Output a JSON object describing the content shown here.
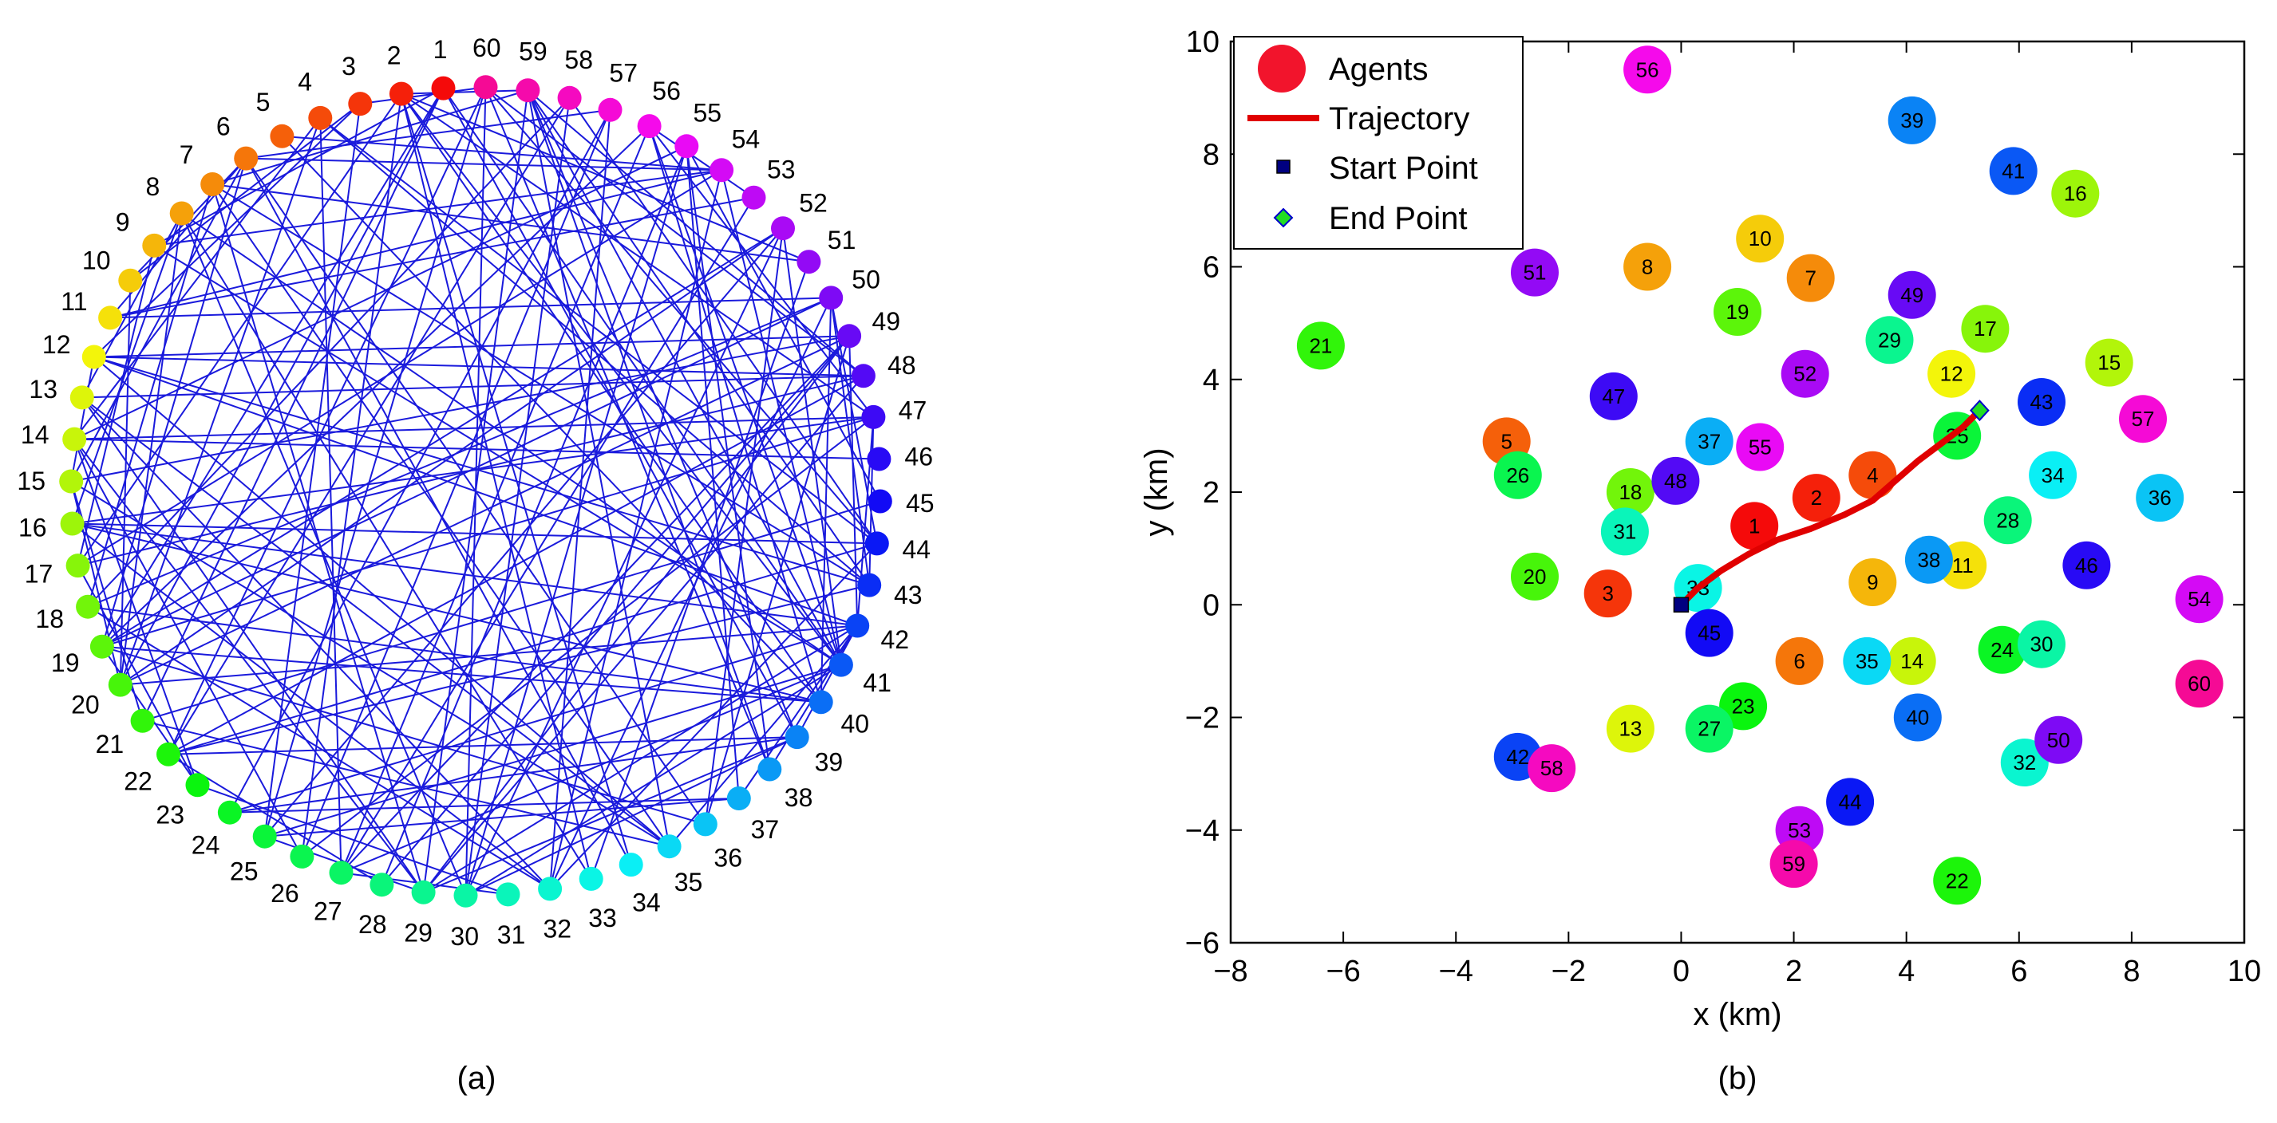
{
  "captions": {
    "left": "(a)",
    "right": "(b)"
  },
  "chart_data": [
    {
      "type": "network",
      "panel": "(a)",
      "title": "",
      "node_count": 60,
      "node_labels": [
        "1",
        "2",
        "3",
        "4",
        "5",
        "6",
        "7",
        "8",
        "9",
        "10",
        "11",
        "12",
        "13",
        "14",
        "15",
        "16",
        "17",
        "18",
        "19",
        "20",
        "21",
        "22",
        "23",
        "24",
        "25",
        "26",
        "27",
        "28",
        "29",
        "30",
        "31",
        "32",
        "33",
        "34",
        "35",
        "36",
        "37",
        "38",
        "39",
        "40",
        "41",
        "42",
        "43",
        "44",
        "45",
        "46",
        "47",
        "48",
        "49",
        "50",
        "51",
        "52",
        "53",
        "54",
        "55",
        "56",
        "57",
        "58",
        "59",
        "60"
      ],
      "edge_color": "#1a1adc"
    },
    {
      "type": "scatter",
      "panel": "(b)",
      "xlabel": "x (km)",
      "ylabel": "y (km)",
      "xlim": [
        -8,
        10
      ],
      "ylim": [
        -6,
        10
      ],
      "xticks": [
        -8,
        -6,
        -4,
        -2,
        0,
        2,
        4,
        6,
        8,
        10
      ],
      "yticks": [
        -6,
        -4,
        -2,
        0,
        2,
        4,
        6,
        8,
        10
      ],
      "xtick_labels": [
        "−8",
        "−6",
        "−4",
        "−2",
        "0",
        "2",
        "4",
        "6",
        "8",
        "10"
      ],
      "ytick_labels": [
        "−6",
        "−4",
        "−2",
        "0",
        "2",
        "4",
        "6",
        "8",
        "10"
      ],
      "legend": {
        "placement": "top-left",
        "entries": [
          "Agents",
          "Trajectory",
          "Start Point",
          "End Point"
        ]
      },
      "start_point": [
        0,
        0
      ],
      "end_point": [
        5.3,
        3.45
      ],
      "trajectory": [
        [
          0,
          0
        ],
        [
          0.3,
          0.3
        ],
        [
          0.7,
          0.6
        ],
        [
          1.2,
          0.9
        ],
        [
          1.7,
          1.15
        ],
        [
          2.3,
          1.35
        ],
        [
          2.9,
          1.6
        ],
        [
          3.4,
          1.85
        ],
        [
          3.8,
          2.2
        ],
        [
          4.2,
          2.55
        ],
        [
          4.6,
          2.85
        ],
        [
          5.0,
          3.15
        ],
        [
          5.3,
          3.45
        ]
      ],
      "agents": [
        {
          "id": "1",
          "x": 1.3,
          "y": 1.4
        },
        {
          "id": "2",
          "x": 2.4,
          "y": 1.9
        },
        {
          "id": "3",
          "x": -1.3,
          "y": 0.2
        },
        {
          "id": "4",
          "x": 3.4,
          "y": 2.3
        },
        {
          "id": "5",
          "x": -3.1,
          "y": 2.9
        },
        {
          "id": "6",
          "x": 2.1,
          "y": -1.0
        },
        {
          "id": "7",
          "x": 2.3,
          "y": 5.8
        },
        {
          "id": "8",
          "x": -0.6,
          "y": 6.0
        },
        {
          "id": "9",
          "x": 3.4,
          "y": 0.4
        },
        {
          "id": "10",
          "x": 1.4,
          "y": 6.5
        },
        {
          "id": "11",
          "x": 5.0,
          "y": 0.7
        },
        {
          "id": "12",
          "x": 4.8,
          "y": 4.1
        },
        {
          "id": "13",
          "x": -0.9,
          "y": -2.2
        },
        {
          "id": "14",
          "x": 4.1,
          "y": -1.0
        },
        {
          "id": "15",
          "x": 7.6,
          "y": 4.3
        },
        {
          "id": "16",
          "x": 7.0,
          "y": 7.3
        },
        {
          "id": "17",
          "x": 5.4,
          "y": 4.9
        },
        {
          "id": "18",
          "x": -0.9,
          "y": 2.0
        },
        {
          "id": "19",
          "x": 1.0,
          "y": 5.2
        },
        {
          "id": "20",
          "x": -2.6,
          "y": 0.5
        },
        {
          "id": "21",
          "x": -6.4,
          "y": 4.6
        },
        {
          "id": "22",
          "x": 4.9,
          "y": -4.9
        },
        {
          "id": "23",
          "x": 1.1,
          "y": -1.8
        },
        {
          "id": "24",
          "x": 5.7,
          "y": -0.8
        },
        {
          "id": "25",
          "x": 4.9,
          "y": 3.0
        },
        {
          "id": "26",
          "x": -2.9,
          "y": 2.3
        },
        {
          "id": "27",
          "x": 0.5,
          "y": -2.2
        },
        {
          "id": "28",
          "x": 5.8,
          "y": 1.5
        },
        {
          "id": "29",
          "x": 3.7,
          "y": 4.7
        },
        {
          "id": "30",
          "x": 6.4,
          "y": -0.7
        },
        {
          "id": "31",
          "x": -1.0,
          "y": 1.3
        },
        {
          "id": "32",
          "x": 6.1,
          "y": -2.8
        },
        {
          "id": "33",
          "x": 0.3,
          "y": 0.3
        },
        {
          "id": "34",
          "x": 6.6,
          "y": 2.3
        },
        {
          "id": "35",
          "x": 3.3,
          "y": -1.0
        },
        {
          "id": "36",
          "x": 8.5,
          "y": 1.9
        },
        {
          "id": "37",
          "x": 0.5,
          "y": 2.9
        },
        {
          "id": "38",
          "x": 4.4,
          "y": 0.8
        },
        {
          "id": "39",
          "x": 4.1,
          "y": 8.6
        },
        {
          "id": "40",
          "x": 4.2,
          "y": -2.0
        },
        {
          "id": "41",
          "x": 5.9,
          "y": 7.7
        },
        {
          "id": "42",
          "x": -2.9,
          "y": -2.7
        },
        {
          "id": "43",
          "x": 6.4,
          "y": 3.6
        },
        {
          "id": "44",
          "x": 3.0,
          "y": -3.5
        },
        {
          "id": "45",
          "x": 0.5,
          "y": -0.5
        },
        {
          "id": "46",
          "x": 7.2,
          "y": 0.7
        },
        {
          "id": "47",
          "x": -1.2,
          "y": 3.7
        },
        {
          "id": "48",
          "x": -0.1,
          "y": 2.2
        },
        {
          "id": "49",
          "x": 4.1,
          "y": 5.5
        },
        {
          "id": "50",
          "x": 6.7,
          "y": -2.4
        },
        {
          "id": "51",
          "x": -2.6,
          "y": 5.9
        },
        {
          "id": "52",
          "x": 2.2,
          "y": 4.1
        },
        {
          "id": "53",
          "x": 2.1,
          "y": -4.0
        },
        {
          "id": "54",
          "x": 9.2,
          "y": 0.1
        },
        {
          "id": "55",
          "x": 1.4,
          "y": 2.8
        },
        {
          "id": "56",
          "x": -0.6,
          "y": 9.5
        },
        {
          "id": "57",
          "x": 8.2,
          "y": 3.3
        },
        {
          "id": "58",
          "x": -2.3,
          "y": -2.9
        },
        {
          "id": "59",
          "x": 2.0,
          "y": -4.6
        },
        {
          "id": "60",
          "x": 9.2,
          "y": -1.4
        }
      ]
    }
  ]
}
